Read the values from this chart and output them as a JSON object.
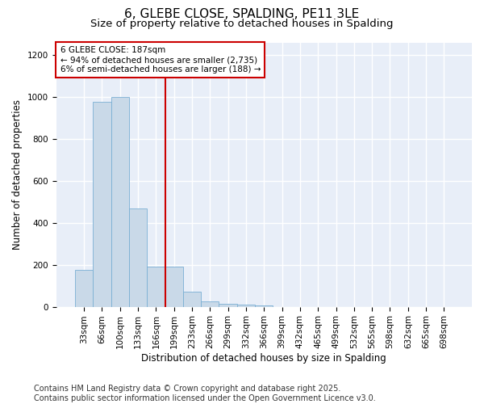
{
  "title": "6, GLEBE CLOSE, SPALDING, PE11 3LE",
  "subtitle": "Size of property relative to detached houses in Spalding",
  "xlabel": "Distribution of detached houses by size in Spalding",
  "ylabel": "Number of detached properties",
  "categories": [
    "33sqm",
    "66sqm",
    "100sqm",
    "133sqm",
    "166sqm",
    "199sqm",
    "233sqm",
    "266sqm",
    "299sqm",
    "332sqm",
    "366sqm",
    "399sqm",
    "432sqm",
    "465sqm",
    "499sqm",
    "532sqm",
    "565sqm",
    "598sqm",
    "632sqm",
    "665sqm",
    "698sqm"
  ],
  "values": [
    175,
    975,
    1000,
    470,
    190,
    190,
    70,
    25,
    15,
    10,
    5,
    0,
    0,
    0,
    0,
    0,
    0,
    0,
    0,
    0,
    0
  ],
  "bar_color": "#c9d9e8",
  "bar_edge_color": "#7aafd4",
  "vline_x_idx": 4.5,
  "vline_color": "#cc0000",
  "annotation_text": "6 GLEBE CLOSE: 187sqm\n← 94% of detached houses are smaller (2,735)\n6% of semi-detached houses are larger (188) →",
  "annotation_box_color": "#cc0000",
  "footer_text": "Contains HM Land Registry data © Crown copyright and database right 2025.\nContains public sector information licensed under the Open Government Licence v3.0.",
  "ylim": [
    0,
    1260
  ],
  "yticks": [
    0,
    200,
    400,
    600,
    800,
    1000,
    1200
  ],
  "fig_bg_color": "#ffffff",
  "plot_bg_color": "#e8eef8",
  "grid_color": "#ffffff",
  "title_fontsize": 11,
  "subtitle_fontsize": 9.5,
  "axis_label_fontsize": 8.5,
  "tick_fontsize": 7.5,
  "footer_fontsize": 7
}
